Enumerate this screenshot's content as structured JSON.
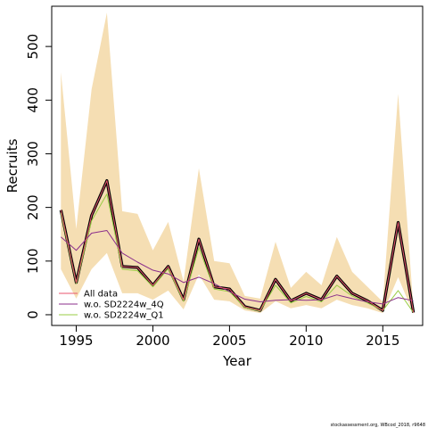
{
  "chart_data": {
    "type": "line",
    "xlabel": "Year",
    "ylabel": "Recruits",
    "xlim": [
      1993.4,
      2017.6
    ],
    "ylim": [
      -20,
      575
    ],
    "x_ticks": [
      1995,
      2000,
      2005,
      2010,
      2015
    ],
    "y_ticks": [
      0,
      100,
      200,
      300,
      400,
      500
    ],
    "x": [
      1994,
      1995,
      1996,
      1997,
      1998,
      1999,
      2000,
      2001,
      2002,
      2003,
      2004,
      2005,
      2006,
      2007,
      2008,
      2009,
      2010,
      2011,
      2012,
      2013,
      2014,
      2015,
      2016,
      2017
    ],
    "band": {
      "color": "#f5deb3",
      "upper": [
        452,
        160,
        420,
        563,
        193,
        188,
        120,
        173,
        62,
        273,
        100,
        96,
        35,
        30,
        136,
        50,
        80,
        55,
        145,
        80,
        52,
        24,
        412,
        10
      ],
      "lower": [
        85,
        30,
        85,
        115,
        40,
        40,
        28,
        45,
        10,
        75,
        28,
        25,
        8,
        3,
        25,
        12,
        18,
        12,
        28,
        18,
        12,
        3,
        70,
        2
      ]
    },
    "series": [
      {
        "name": "All data",
        "color": "#e8566e",
        "values": [
          195,
          60,
          185,
          250,
          90,
          88,
          55,
          90,
          28,
          141,
          52,
          48,
          15,
          8,
          66,
          26,
          40,
          28,
          72,
          40,
          26,
          8,
          172,
          4
        ]
      },
      {
        "name": "w.o. SD2224w_4Q",
        "color": "#8b2f8b",
        "values": [
          145,
          120,
          152,
          157,
          115,
          98,
          83,
          76,
          60,
          70,
          58,
          43,
          29,
          24,
          27,
          28,
          27,
          28,
          37,
          30,
          24,
          20,
          32,
          26
        ]
      },
      {
        "name": "w.o. SD2224w_Q1",
        "color": "#99cc44",
        "values": [
          190,
          58,
          175,
          225,
          85,
          82,
          52,
          86,
          25,
          125,
          48,
          43,
          13,
          7,
          55,
          22,
          34,
          24,
          55,
          35,
          22,
          8,
          45,
          4
        ]
      }
    ],
    "central_line_color": "#000000",
    "legend_position": "bottom-left"
  },
  "footer": {
    "credit": "stockassessment.org, WBcod_2018, r9648"
  }
}
